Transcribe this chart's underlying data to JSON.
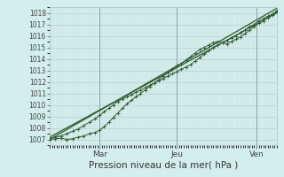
{
  "bg_color": "#d4eeed",
  "grid_major_color": "#b8cece",
  "grid_minor_color": "#c8dddd",
  "line_color": "#2d5a2d",
  "dot_color": "#2d5a2d",
  "ylabel_values": [
    1007,
    1008,
    1009,
    1010,
    1011,
    1012,
    1013,
    1014,
    1015,
    1016,
    1017,
    1018
  ],
  "ymin": 1006.5,
  "ymax": 1018.5,
  "xlabel": "Pression niveau de la mer( hPa )",
  "xmin": 0.0,
  "xmax": 1.0,
  "x_tick_pos": [
    0.22,
    0.56,
    0.91
  ],
  "x_tick_labels": [
    "Mar",
    "Jeu",
    "Ven"
  ],
  "line1_x": [
    0.0,
    0.025,
    0.05,
    0.075,
    0.1,
    0.125,
    0.15,
    0.175,
    0.2,
    0.22,
    0.24,
    0.26,
    0.28,
    0.3,
    0.32,
    0.34,
    0.36,
    0.38,
    0.4,
    0.42,
    0.44,
    0.46,
    0.48,
    0.5,
    0.52,
    0.54,
    0.56,
    0.58,
    0.6,
    0.62,
    0.64,
    0.66,
    0.68,
    0.7,
    0.72,
    0.74,
    0.76,
    0.78,
    0.8,
    0.82,
    0.84,
    0.86,
    0.88,
    0.9,
    0.92,
    0.94,
    0.96,
    0.98,
    1.0
  ],
  "line1_y": [
    1007.0,
    1007.05,
    1007.1,
    1007.0,
    1007.05,
    1007.2,
    1007.3,
    1007.5,
    1007.6,
    1007.8,
    1008.1,
    1008.5,
    1008.9,
    1009.3,
    1009.7,
    1010.1,
    1010.4,
    1010.7,
    1011.0,
    1011.3,
    1011.6,
    1011.9,
    1012.2,
    1012.5,
    1012.8,
    1013.1,
    1013.4,
    1013.6,
    1013.9,
    1014.2,
    1014.5,
    1014.8,
    1015.0,
    1015.2,
    1015.4,
    1015.5,
    1015.4,
    1015.3,
    1015.5,
    1015.7,
    1015.9,
    1016.2,
    1016.5,
    1016.8,
    1017.1,
    1017.3,
    1017.6,
    1017.8,
    1018.1
  ],
  "line2_x": [
    0.0,
    0.025,
    0.05,
    0.075,
    0.1,
    0.125,
    0.15,
    0.175,
    0.2,
    0.22,
    0.24,
    0.26,
    0.28,
    0.3,
    0.32,
    0.34,
    0.36,
    0.38,
    0.4,
    0.42,
    0.44,
    0.46,
    0.48,
    0.5,
    0.52,
    0.54,
    0.56,
    0.58,
    0.6,
    0.62,
    0.64,
    0.66,
    0.68,
    0.7,
    0.72,
    0.74,
    0.76,
    0.78,
    0.8,
    0.82,
    0.84,
    0.86,
    0.88,
    0.9,
    0.92,
    0.94,
    0.96,
    0.98,
    1.0
  ],
  "line2_y": [
    1007.1,
    1007.2,
    1007.3,
    1007.5,
    1007.7,
    1007.9,
    1008.2,
    1008.5,
    1008.8,
    1009.1,
    1009.4,
    1009.7,
    1010.0,
    1010.3,
    1010.5,
    1010.7,
    1010.9,
    1011.1,
    1011.3,
    1011.5,
    1011.7,
    1011.9,
    1012.1,
    1012.3,
    1012.5,
    1012.7,
    1012.9,
    1013.1,
    1013.3,
    1013.5,
    1013.8,
    1014.1,
    1014.4,
    1014.7,
    1015.0,
    1015.2,
    1015.4,
    1015.6,
    1015.8,
    1016.0,
    1016.3,
    1016.5,
    1016.8,
    1017.0,
    1017.3,
    1017.5,
    1017.7,
    1017.9,
    1018.2
  ],
  "line3_x": [
    0.0,
    1.0
  ],
  "line3_y": [
    1007.0,
    1018.4
  ],
  "line4_x": [
    0.0,
    0.15,
    1.0
  ],
  "line4_y": [
    1007.2,
    1008.8,
    1018.0
  ],
  "vline_x": [
    0.22,
    0.56,
    0.91
  ]
}
